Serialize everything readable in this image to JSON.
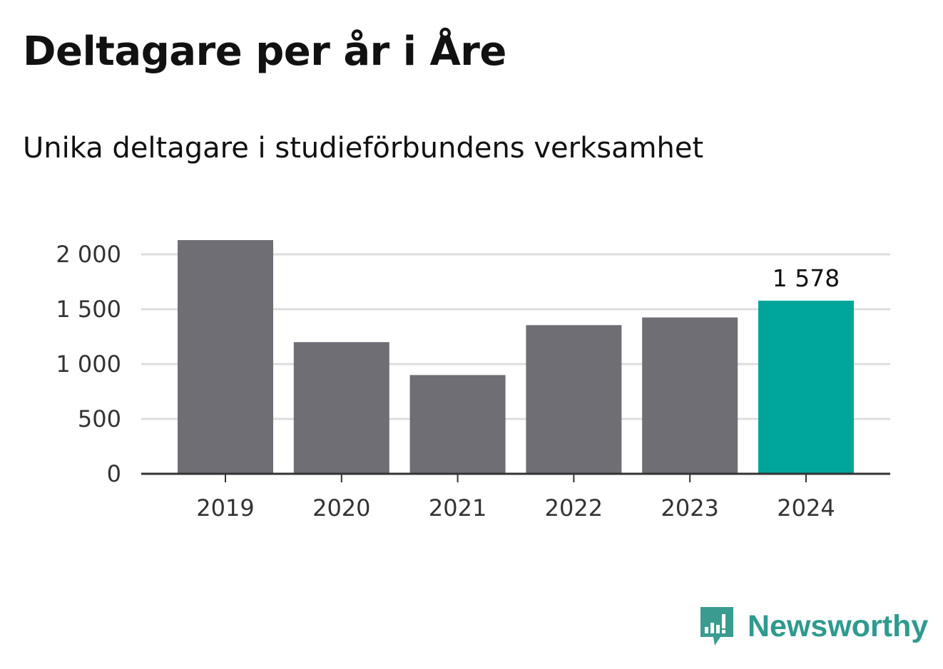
{
  "header": {
    "title": "Deltagare per år i Åre",
    "subtitle": "Unika deltagare i studieförbundens verksamhet"
  },
  "chart_data": {
    "type": "bar",
    "categories": [
      "2019",
      "2020",
      "2021",
      "2022",
      "2023",
      "2024"
    ],
    "values": [
      2130,
      1200,
      900,
      1355,
      1425,
      1578
    ],
    "value_labels": [
      "",
      "",
      "",
      "",
      "",
      "1 578"
    ],
    "yticks": [
      0,
      500,
      1000,
      1500,
      2000
    ],
    "ytick_labels": [
      "0",
      "500",
      "1 000",
      "1 500",
      "2 000"
    ],
    "ylim": [
      0,
      2130
    ],
    "grid": true,
    "colors": {
      "default": "#6f6e75",
      "highlight": "#00a59a",
      "grid": "#dddddd",
      "axis": "#333333"
    },
    "highlight_index": 5
  },
  "logo": {
    "text": "Newsworthy",
    "icon": "newsworthy-logo-icon",
    "color": "#2f9a8e"
  }
}
